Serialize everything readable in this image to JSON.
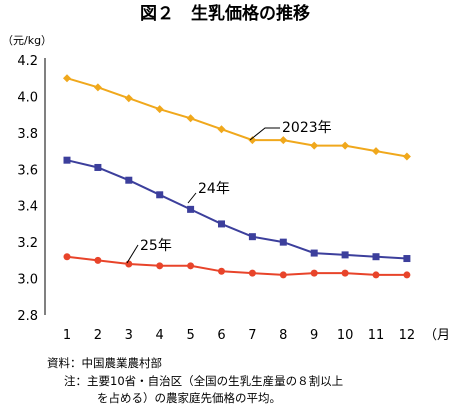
{
  "chart_data": {
    "type": "line",
    "title": "図２　生乳価格の推移",
    "ylabel": "（元/kg）",
    "xlabel": "（月）",
    "x": [
      "1",
      "2",
      "3",
      "4",
      "5",
      "6",
      "7",
      "8",
      "9",
      "10",
      "11",
      "12"
    ],
    "ylim": [
      2.8,
      4.2
    ],
    "yticks": [
      "2.8",
      "3.0",
      "3.2",
      "3.4",
      "3.6",
      "3.8",
      "4.0",
      "4.2"
    ],
    "grid": false,
    "series": [
      {
        "name": "2023年",
        "color": "#f0a81c",
        "marker": "diamond",
        "values": [
          4.1,
          4.05,
          3.99,
          3.93,
          3.88,
          3.82,
          3.76,
          3.76,
          3.73,
          3.73,
          3.7,
          3.67
        ]
      },
      {
        "name": "24年",
        "color": "#3c3f9c",
        "marker": "square",
        "values": [
          3.65,
          3.61,
          3.54,
          3.46,
          3.38,
          3.3,
          3.23,
          3.2,
          3.14,
          3.13,
          3.12,
          3.11
        ]
      },
      {
        "name": "25年",
        "color": "#e8442a",
        "marker": "circle",
        "values": [
          3.12,
          3.1,
          3.08,
          3.07,
          3.07,
          3.04,
          3.03,
          3.02,
          3.03,
          3.03,
          3.02,
          3.02
        ]
      }
    ]
  },
  "notes": {
    "source": "資料：中国農業農村部",
    "note_line1": "注：主要10省・自治区（全国の生乳生産量の８割以上",
    "note_line2": "を占める）の農家庭先価格の平均。"
  }
}
